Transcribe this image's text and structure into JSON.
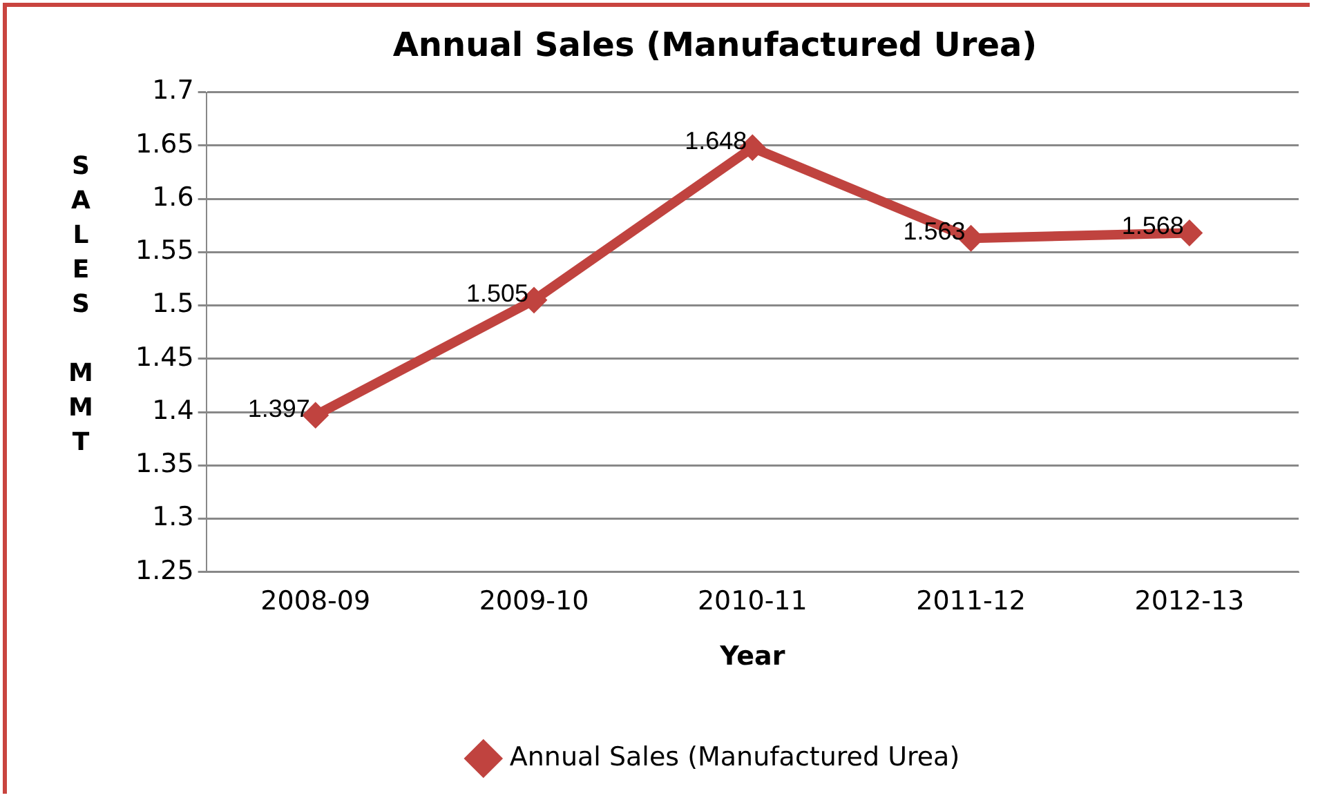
{
  "chart_data": {
    "type": "line",
    "title": "Annual Sales (Manufactured Urea)",
    "xlabel": "Year",
    "ylabel": "SALES MMT",
    "categories": [
      "2008-09",
      "2009-10",
      "2010-11",
      "2011-12",
      "2012-13"
    ],
    "series": [
      {
        "name": "Annual Sales (Manufactured Urea)",
        "color": "#c0433f",
        "values": [
          1.397,
          1.505,
          1.648,
          1.563,
          1.568
        ]
      }
    ],
    "ylim": [
      1.25,
      1.7
    ],
    "yticks": [
      1.25,
      1.3,
      1.35,
      1.4,
      1.45,
      1.5,
      1.55,
      1.6,
      1.65,
      1.7
    ],
    "grid": "y",
    "legend": "bottom",
    "marker": "diamond",
    "line_style": "solid",
    "data_labels": true
  }
}
